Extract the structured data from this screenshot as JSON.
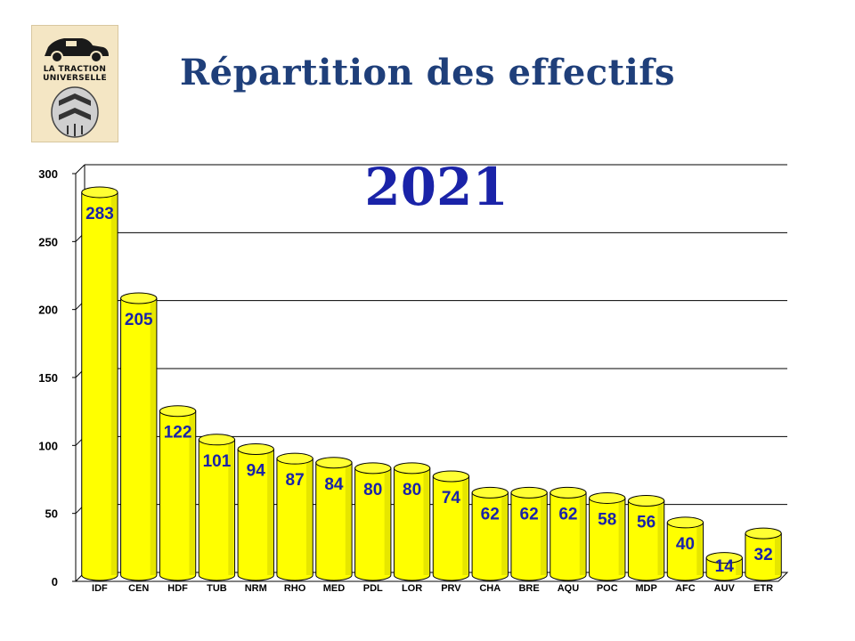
{
  "header": {
    "title": "Répartition des effectifs",
    "logo_line1": "LA TRACTION",
    "logo_line2": "UNIVERSELLE"
  },
  "chart_data": {
    "type": "bar",
    "title": "2021",
    "categories": [
      "IDF",
      "CEN",
      "HDF",
      "TUB",
      "NRM",
      "RHO",
      "MED",
      "PDL",
      "LOR",
      "PRV",
      "CHA",
      "BRE",
      "AQU",
      "POC",
      "MDP",
      "AFC",
      "AUV",
      "ETR"
    ],
    "values": [
      283,
      205,
      122,
      101,
      94,
      87,
      84,
      80,
      80,
      74,
      62,
      62,
      62,
      58,
      56,
      40,
      14,
      32
    ],
    "ylim": [
      0,
      300
    ],
    "yticks": [
      0,
      50,
      100,
      150,
      200,
      250,
      300
    ],
    "xlabel": "",
    "ylabel": "",
    "grid": true,
    "bar_color": "#ffff00",
    "bar_shade_color": "#b8b800",
    "label_color": "#1a23a8",
    "title_color": "#1a23a8"
  }
}
